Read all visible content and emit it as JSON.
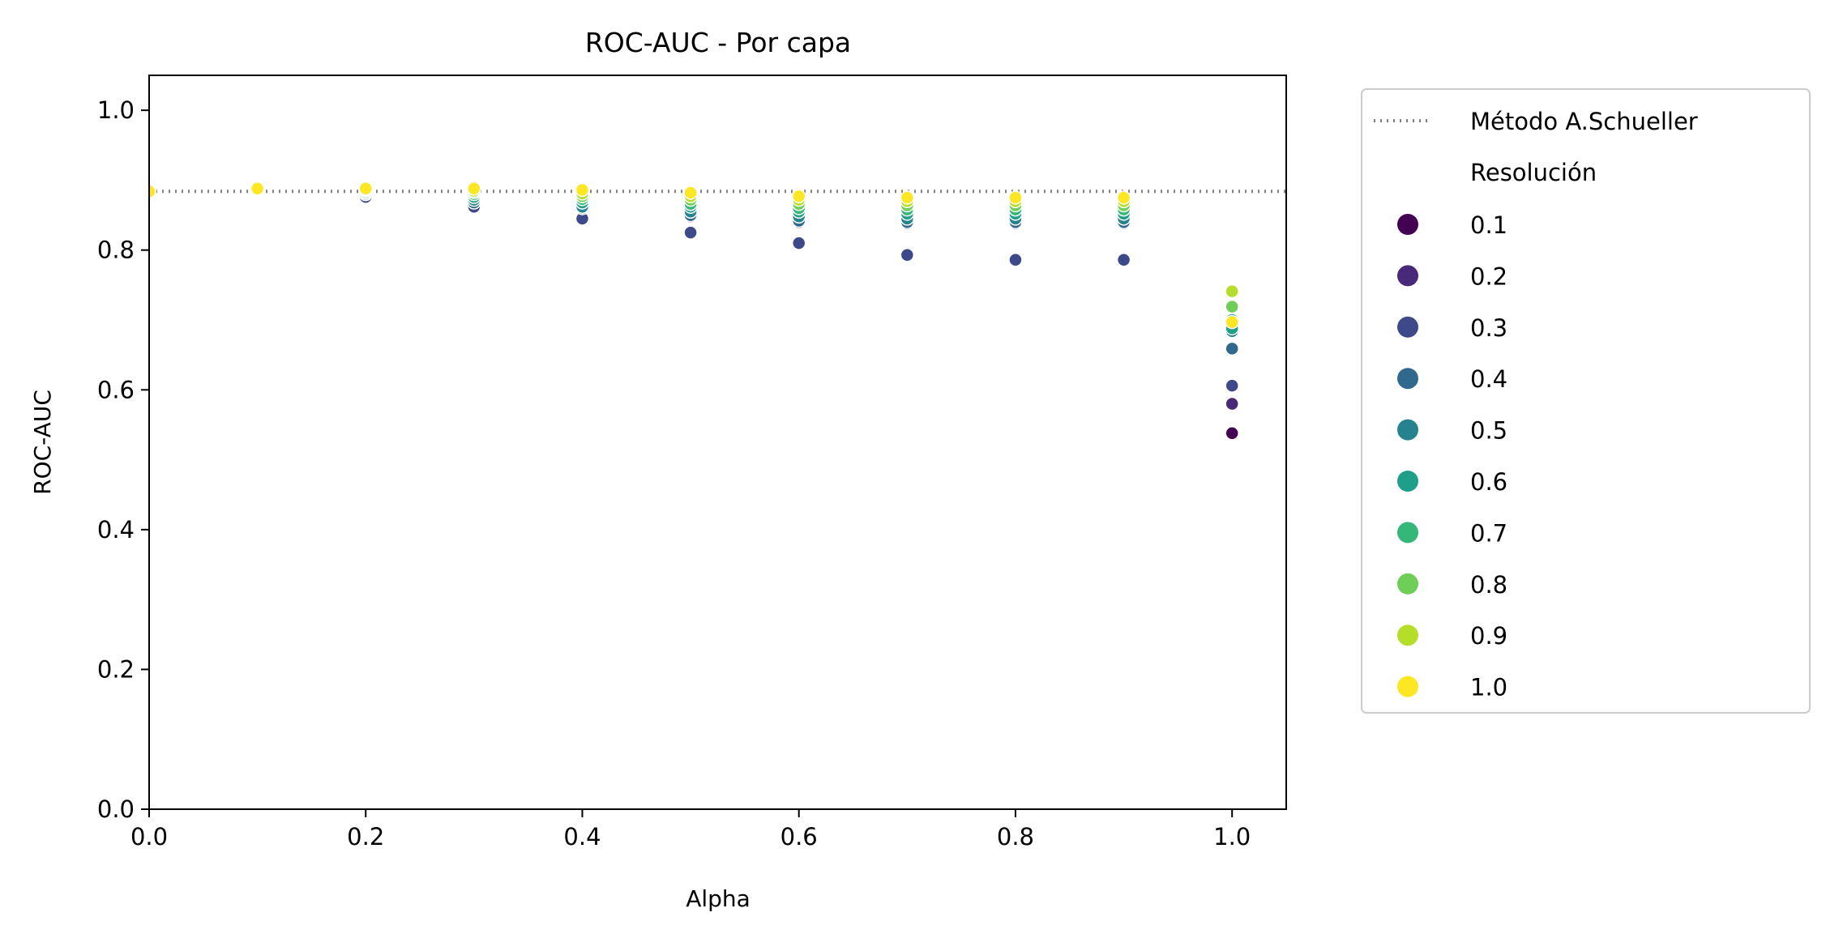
{
  "chart_data": {
    "type": "scatter",
    "title": "ROC-AUC - Por capa",
    "xlabel": "Alpha",
    "ylabel": "ROC-AUC",
    "xlim": [
      0.0,
      1.05
    ],
    "ylim": [
      0.0,
      1.05
    ],
    "xticks": [
      "0.0",
      "0.2",
      "0.4",
      "0.6",
      "0.8",
      "1.0"
    ],
    "yticks": [
      "0.0",
      "0.2",
      "0.4",
      "0.6",
      "0.8",
      "1.0"
    ],
    "grid": false,
    "legend_position": "outside-right",
    "baseline": {
      "name": "Método A.Schueller",
      "value": 0.884,
      "color": "#808080",
      "style": "dotted"
    },
    "hue_title": "Resolución",
    "series": [
      {
        "name": "0.1",
        "color": "#440154",
        "points": [
          [
            0.0,
            0.884
          ],
          [
            0.1,
            0.888
          ],
          [
            0.2,
            0.884
          ],
          [
            0.3,
            0.878
          ],
          [
            0.4,
            0.87
          ],
          [
            0.5,
            0.862
          ],
          [
            0.6,
            0.85
          ],
          [
            0.7,
            0.842
          ],
          [
            0.8,
            0.84
          ],
          [
            0.9,
            0.84
          ],
          [
            1.0,
            0.538
          ]
        ]
      },
      {
        "name": "0.2",
        "color": "#482878",
        "points": [
          [
            0.0,
            0.884
          ],
          [
            0.1,
            0.888
          ],
          [
            0.2,
            0.878
          ],
          [
            0.3,
            0.868
          ],
          [
            0.4,
            0.858
          ],
          [
            0.5,
            0.848
          ],
          [
            0.6,
            0.84
          ],
          [
            0.7,
            0.838
          ],
          [
            0.8,
            0.838
          ],
          [
            0.9,
            0.838
          ],
          [
            1.0,
            0.58
          ]
        ]
      },
      {
        "name": "0.3",
        "color": "#3e4989",
        "points": [
          [
            0.0,
            0.884
          ],
          [
            0.1,
            0.887
          ],
          [
            0.2,
            0.876
          ],
          [
            0.3,
            0.862
          ],
          [
            0.4,
            0.845
          ],
          [
            0.5,
            0.825
          ],
          [
            0.6,
            0.81
          ],
          [
            0.7,
            0.793
          ],
          [
            0.8,
            0.786
          ],
          [
            0.9,
            0.786
          ],
          [
            1.0,
            0.606
          ]
        ]
      },
      {
        "name": "0.4",
        "color": "#31688e",
        "points": [
          [
            0.0,
            0.884
          ],
          [
            0.1,
            0.887
          ],
          [
            0.2,
            0.88
          ],
          [
            0.3,
            0.868
          ],
          [
            0.4,
            0.86
          ],
          [
            0.5,
            0.85
          ],
          [
            0.6,
            0.842
          ],
          [
            0.7,
            0.84
          ],
          [
            0.8,
            0.84
          ],
          [
            0.9,
            0.84
          ],
          [
            1.0,
            0.659
          ]
        ]
      },
      {
        "name": "0.5",
        "color": "#26828e",
        "points": [
          [
            0.0,
            0.884
          ],
          [
            0.1,
            0.887
          ],
          [
            0.2,
            0.882
          ],
          [
            0.3,
            0.872
          ],
          [
            0.4,
            0.862
          ],
          [
            0.5,
            0.855
          ],
          [
            0.6,
            0.848
          ],
          [
            0.7,
            0.845
          ],
          [
            0.8,
            0.845
          ],
          [
            0.9,
            0.845
          ],
          [
            1.0,
            0.684
          ]
        ]
      },
      {
        "name": "0.6",
        "color": "#1f9e89",
        "points": [
          [
            0.0,
            0.884
          ],
          [
            0.1,
            0.888
          ],
          [
            0.2,
            0.883
          ],
          [
            0.3,
            0.876
          ],
          [
            0.4,
            0.868
          ],
          [
            0.5,
            0.862
          ],
          [
            0.6,
            0.855
          ],
          [
            0.7,
            0.852
          ],
          [
            0.8,
            0.852
          ],
          [
            0.9,
            0.852
          ],
          [
            1.0,
            0.688
          ]
        ]
      },
      {
        "name": "0.7",
        "color": "#35b779",
        "points": [
          [
            0.0,
            0.884
          ],
          [
            0.1,
            0.888
          ],
          [
            0.2,
            0.885
          ],
          [
            0.3,
            0.88
          ],
          [
            0.4,
            0.873
          ],
          [
            0.5,
            0.866
          ],
          [
            0.6,
            0.86
          ],
          [
            0.7,
            0.858
          ],
          [
            0.8,
            0.858
          ],
          [
            0.9,
            0.858
          ],
          [
            1.0,
            0.7
          ]
        ]
      },
      {
        "name": "0.8",
        "color": "#6ece58",
        "points": [
          [
            0.0,
            0.884
          ],
          [
            0.1,
            0.888
          ],
          [
            0.2,
            0.886
          ],
          [
            0.3,
            0.883
          ],
          [
            0.4,
            0.877
          ],
          [
            0.5,
            0.872
          ],
          [
            0.6,
            0.866
          ],
          [
            0.7,
            0.864
          ],
          [
            0.8,
            0.864
          ],
          [
            0.9,
            0.864
          ],
          [
            1.0,
            0.719
          ]
        ]
      },
      {
        "name": "0.9",
        "color": "#b5de2b",
        "points": [
          [
            0.0,
            0.884
          ],
          [
            0.1,
            0.888
          ],
          [
            0.2,
            0.887
          ],
          [
            0.3,
            0.885
          ],
          [
            0.4,
            0.881
          ],
          [
            0.5,
            0.877
          ],
          [
            0.6,
            0.872
          ],
          [
            0.7,
            0.87
          ],
          [
            0.8,
            0.87
          ],
          [
            0.9,
            0.87
          ],
          [
            1.0,
            0.741
          ]
        ]
      },
      {
        "name": "1.0",
        "color": "#fde725",
        "points": [
          [
            0.0,
            0.884
          ],
          [
            0.1,
            0.888
          ],
          [
            0.2,
            0.888
          ],
          [
            0.3,
            0.888
          ],
          [
            0.4,
            0.886
          ],
          [
            0.5,
            0.882
          ],
          [
            0.6,
            0.877
          ],
          [
            0.7,
            0.875
          ],
          [
            0.8,
            0.875
          ],
          [
            0.9,
            0.875
          ],
          [
            1.0,
            0.697
          ]
        ]
      }
    ]
  }
}
